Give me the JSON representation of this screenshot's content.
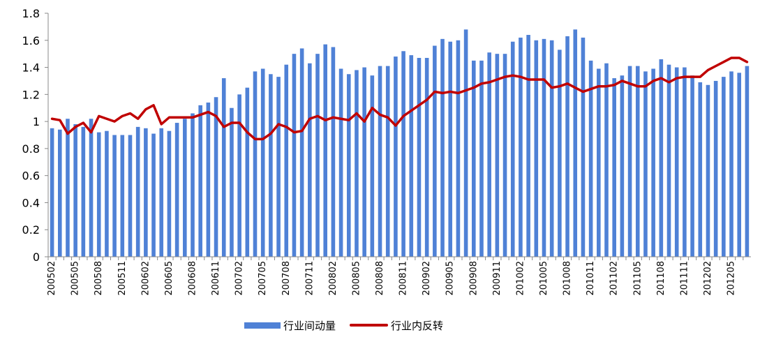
{
  "chart_data": {
    "type": "bar",
    "x": [
      "200502",
      "200503",
      "200504",
      "200505",
      "200506",
      "200507",
      "200508",
      "200509",
      "200510",
      "200511",
      "200512",
      "200601",
      "200602",
      "200603",
      "200604",
      "200605",
      "200606",
      "200607",
      "200608",
      "200609",
      "200610",
      "200611",
      "200612",
      "200701",
      "200702",
      "200703",
      "200704",
      "200705",
      "200706",
      "200707",
      "200708",
      "200709",
      "200710",
      "200711",
      "200712",
      "200801",
      "200802",
      "200803",
      "200804",
      "200805",
      "200806",
      "200807",
      "200808",
      "200809",
      "200810",
      "200811",
      "200812",
      "200901",
      "200902",
      "200903",
      "200904",
      "200905",
      "200906",
      "200907",
      "200908",
      "200909",
      "200910",
      "200911",
      "200912",
      "201001",
      "201002",
      "201003",
      "201004",
      "201005",
      "201006",
      "201007",
      "201008",
      "201009",
      "201010",
      "201011",
      "201012",
      "201101",
      "201102",
      "201103",
      "201104",
      "201105",
      "201106",
      "201107",
      "201108",
      "201109",
      "201110",
      "201111",
      "201112",
      "201201",
      "201202",
      "201203",
      "201204",
      "201205",
      "201206",
      "201207"
    ],
    "x_tick_labels": [
      "200502",
      "200505",
      "200508",
      "200511",
      "200602",
      "200605",
      "200608",
      "200611",
      "200702",
      "200705",
      "200708",
      "200711",
      "200802",
      "200805",
      "200808",
      "200811",
      "200902",
      "200905",
      "200908",
      "200911",
      "201002",
      "201005",
      "201008",
      "201011",
      "201102",
      "201105",
      "201108",
      "201111",
      "201202",
      "201205"
    ],
    "series": [
      {
        "name": "行业间动量",
        "type": "bar",
        "color": "#4F81D6",
        "values": [
          0.95,
          0.94,
          1.02,
          0.98,
          0.96,
          1.02,
          0.92,
          0.93,
          0.9,
          0.9,
          0.9,
          0.96,
          0.95,
          0.91,
          0.95,
          0.93,
          0.99,
          1.02,
          1.06,
          1.12,
          1.14,
          1.18,
          1.32,
          1.1,
          1.2,
          1.25,
          1.37,
          1.39,
          1.35,
          1.33,
          1.42,
          1.5,
          1.54,
          1.43,
          1.5,
          1.57,
          1.55,
          1.39,
          1.35,
          1.38,
          1.4,
          1.34,
          1.41,
          1.41,
          1.48,
          1.52,
          1.49,
          1.47,
          1.47,
          1.56,
          1.61,
          1.59,
          1.6,
          1.68,
          1.45,
          1.45,
          1.51,
          1.5,
          1.5,
          1.59,
          1.62,
          1.64,
          1.6,
          1.61,
          1.6,
          1.53,
          1.63,
          1.68,
          1.62,
          1.45,
          1.39,
          1.43,
          1.32,
          1.34,
          1.41,
          1.41,
          1.37,
          1.39,
          1.46,
          1.42,
          1.4,
          1.4,
          1.34,
          1.29,
          1.27,
          1.3,
          1.33,
          1.37,
          1.36,
          1.41
        ]
      },
      {
        "name": "行业内反转",
        "type": "line",
        "color": "#C00000",
        "values": [
          1.02,
          1.01,
          0.91,
          0.96,
          0.99,
          0.92,
          1.04,
          1.02,
          1.0,
          1.04,
          1.06,
          1.02,
          1.09,
          1.12,
          0.98,
          1.03,
          1.03,
          1.03,
          1.03,
          1.05,
          1.07,
          1.04,
          0.96,
          0.99,
          0.99,
          0.92,
          0.87,
          0.87,
          0.91,
          0.98,
          0.96,
          0.92,
          0.93,
          1.02,
          1.04,
          1.01,
          1.03,
          1.02,
          1.01,
          1.06,
          1.0,
          1.1,
          1.05,
          1.03,
          0.97,
          1.04,
          1.08,
          1.12,
          1.16,
          1.22,
          1.21,
          1.22,
          1.21,
          1.23,
          1.25,
          1.28,
          1.29,
          1.31,
          1.33,
          1.34,
          1.33,
          1.31,
          1.31,
          1.31,
          1.25,
          1.26,
          1.28,
          1.25,
          1.22,
          1.24,
          1.26,
          1.26,
          1.27,
          1.3,
          1.28,
          1.26,
          1.26,
          1.3,
          1.32,
          1.29,
          1.32,
          1.33,
          1.33,
          1.33,
          1.38,
          1.41,
          1.44,
          1.47,
          1.47,
          1.44
        ]
      }
    ],
    "ylim": [
      0,
      1.8
    ],
    "y_ticks": [
      "0",
      "0.2",
      "0.4",
      "0.6",
      "0.8",
      "1",
      "1.2",
      "1.4",
      "1.6",
      "1.8"
    ],
    "title": "",
    "xlabel": "",
    "ylabel": "",
    "grid": false,
    "legend": "bottom-center"
  },
  "legend": {
    "items": [
      {
        "label": "行业间动量",
        "color": "#4F81D6"
      },
      {
        "label": "行业内反转",
        "color": "#C00000"
      }
    ]
  }
}
